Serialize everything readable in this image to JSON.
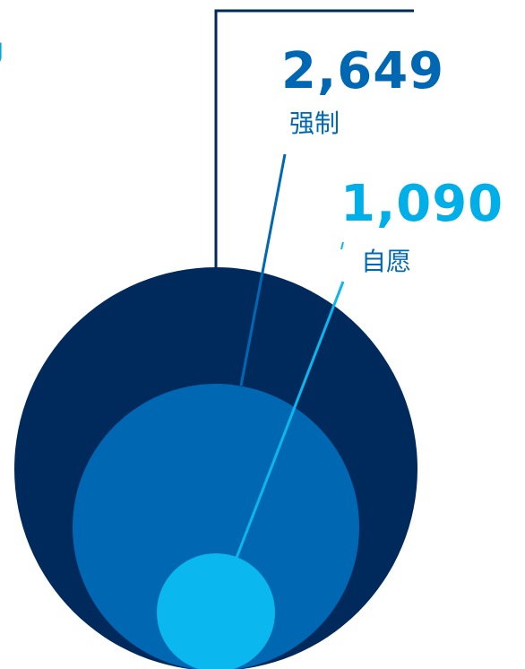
{
  "colors": {
    "outer_circle": "#002a5c",
    "middle_circle": "#0068b3",
    "inner_circle": "#0ab7ee",
    "leader_outer": "#002a5c",
    "leader_middle": "#0068b3",
    "leader_inner": "#0ab7ee",
    "partial_glyph": "#00a9e0"
  },
  "partial_glyph": "J",
  "chart_data": {
    "type": "nested-circles",
    "series": [
      {
        "name": "",
        "value": null
      },
      {
        "name": "强制",
        "value": 2649,
        "value_label": "2,649"
      },
      {
        "name": "自愿",
        "value": 1090,
        "value_label": "1,090"
      }
    ]
  }
}
